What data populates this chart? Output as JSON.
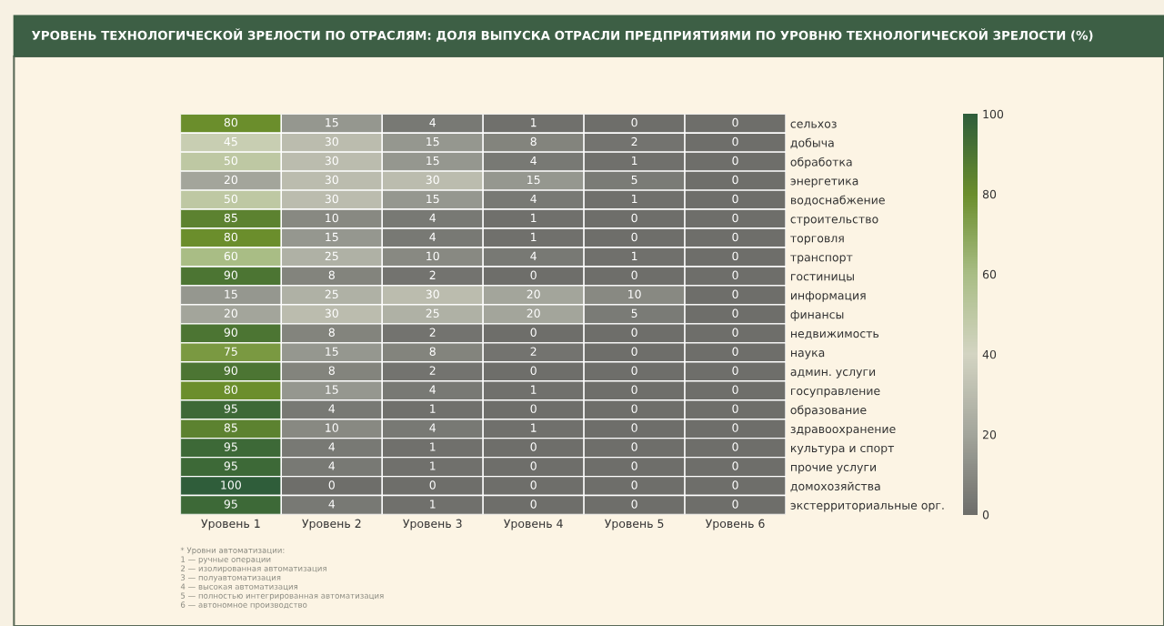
{
  "chart_data": {
    "type": "heatmap",
    "title": "УРОВЕНЬ ТЕХНОЛОГИЧЕСКОЙ ЗРЕЛОСТИ ПО ОТРАСЛЯМ: ДОЛЯ ВЫПУСКА ОТРАСЛИ ПРЕДПРИЯТИЯМИ ПО УРОВНЮ ТЕХНОЛОГИЧЕСКОЙ ЗРЕЛОСТИ (%)",
    "categories": [
      "Уровень 1",
      "Уровень 2",
      "Уровень 3",
      "Уровень 4",
      "Уровень 5",
      "Уровень 6"
    ],
    "y_categories": [
      "сельхоз",
      "добыча",
      "обработка",
      "энергетика",
      "водоснабжение",
      "строительство",
      "торговля",
      "транспорт",
      "гостиницы",
      "информация",
      "финансы",
      "недвижимость",
      "наука",
      "админ. услуги",
      "госуправление",
      "образование",
      "здравоохранение",
      "культура и спорт",
      "прочие услуги",
      "домохозяйства",
      "экстерриториальные орг."
    ],
    "cells": [
      [
        80,
        15,
        4,
        1,
        0,
        0
      ],
      [
        45,
        30,
        15,
        8,
        2,
        0
      ],
      [
        50,
        30,
        15,
        4,
        1,
        0
      ],
      [
        20,
        30,
        30,
        15,
        5,
        0
      ],
      [
        50,
        30,
        15,
        4,
        1,
        0
      ],
      [
        85,
        10,
        4,
        1,
        0,
        0
      ],
      [
        80,
        15,
        4,
        1,
        0,
        0
      ],
      [
        60,
        25,
        10,
        4,
        1,
        0
      ],
      [
        90,
        8,
        2,
        0,
        0,
        0
      ],
      [
        15,
        25,
        30,
        20,
        10,
        0
      ],
      [
        20,
        30,
        25,
        20,
        5,
        0
      ],
      [
        90,
        8,
        2,
        0,
        0,
        0
      ],
      [
        75,
        15,
        8,
        2,
        0,
        0
      ],
      [
        90,
        8,
        2,
        0,
        0,
        0
      ],
      [
        80,
        15,
        4,
        1,
        0,
        0
      ],
      [
        95,
        4,
        1,
        0,
        0,
        0
      ],
      [
        85,
        10,
        4,
        1,
        0,
        0
      ],
      [
        95,
        4,
        1,
        0,
        0,
        0
      ],
      [
        95,
        4,
        1,
        0,
        0,
        0
      ],
      [
        100,
        0,
        0,
        0,
        0,
        0
      ],
      [
        95,
        4,
        1,
        0,
        0,
        0
      ]
    ],
    "data_labels": true,
    "clim": [
      0,
      100
    ],
    "cticks": [
      0,
      20,
      40,
      60,
      80,
      100
    ],
    "colors": [
      "#6e6e6a",
      "#a3a59b",
      "#d3d4c2",
      "#a9bd85",
      "#6b8e2c",
      "#2f5d3a"
    ],
    "annotations": [
      "* Уровни автоматизации:",
      "1 — ручные операции",
      "2 — изолированная автоматизация",
      "3 — полуавтоматизация",
      "4 — высокая автоматизация",
      "5 — полностью интегрированная автоматизация",
      "6 — автономное производство"
    ]
  }
}
